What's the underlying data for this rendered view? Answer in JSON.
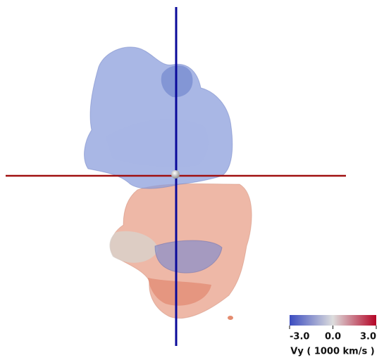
{
  "colorbar": {
    "label": "Vy ( 1000 km/s )",
    "range": [
      -3,
      3
    ],
    "ticks": [
      {
        "value": -3,
        "label": "-3.0"
      },
      {
        "value": 0,
        "label": "0.0"
      },
      {
        "value": 3,
        "label": "3.0"
      }
    ]
  }
}
